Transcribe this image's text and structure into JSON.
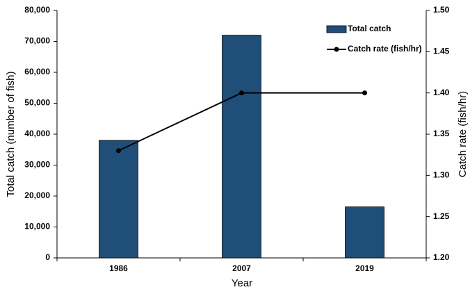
{
  "chart_data": {
    "type": "bar",
    "x_label": "Year",
    "y_label": "Total catch (number of fish)",
    "y2_label": "Catch rate (fish/hr)",
    "categories": [
      "1986",
      "2007",
      "2019"
    ],
    "series": [
      {
        "name": "Total catch",
        "type": "bar",
        "color": "#1f4e79",
        "values": [
          38000,
          72000,
          16500
        ]
      },
      {
        "name": "Catch rate (fish/hr)",
        "type": "line",
        "axis": "y2",
        "color": "#000000",
        "values": [
          1.33,
          1.4,
          1.4
        ]
      }
    ],
    "ylim": [
      0,
      80000
    ],
    "yticks": [
      0,
      {
        "value": 10000,
        "label": "10,000"
      },
      {
        "value": 20000,
        "label": "20,000"
      },
      {
        "value": 30000,
        "label": "30,000"
      },
      {
        "value": 40000,
        "label": "40,000"
      },
      {
        "value": 50000,
        "label": "50,000"
      },
      {
        "value": 60000,
        "label": "60,000"
      },
      {
        "value": 70000,
        "label": "70,000"
      },
      {
        "value": 80000,
        "label": "80,000"
      }
    ],
    "y2lim": [
      1.2,
      1.5
    ],
    "y2ticks": [
      {
        "value": 1.2,
        "label": "1.20"
      },
      1.25,
      {
        "value": 1.3,
        "label": "1.30"
      },
      1.35,
      {
        "value": 1.4,
        "label": "1.40"
      },
      1.45,
      {
        "value": 1.5,
        "label": "1.50"
      }
    ],
    "legend": "upper-right"
  }
}
